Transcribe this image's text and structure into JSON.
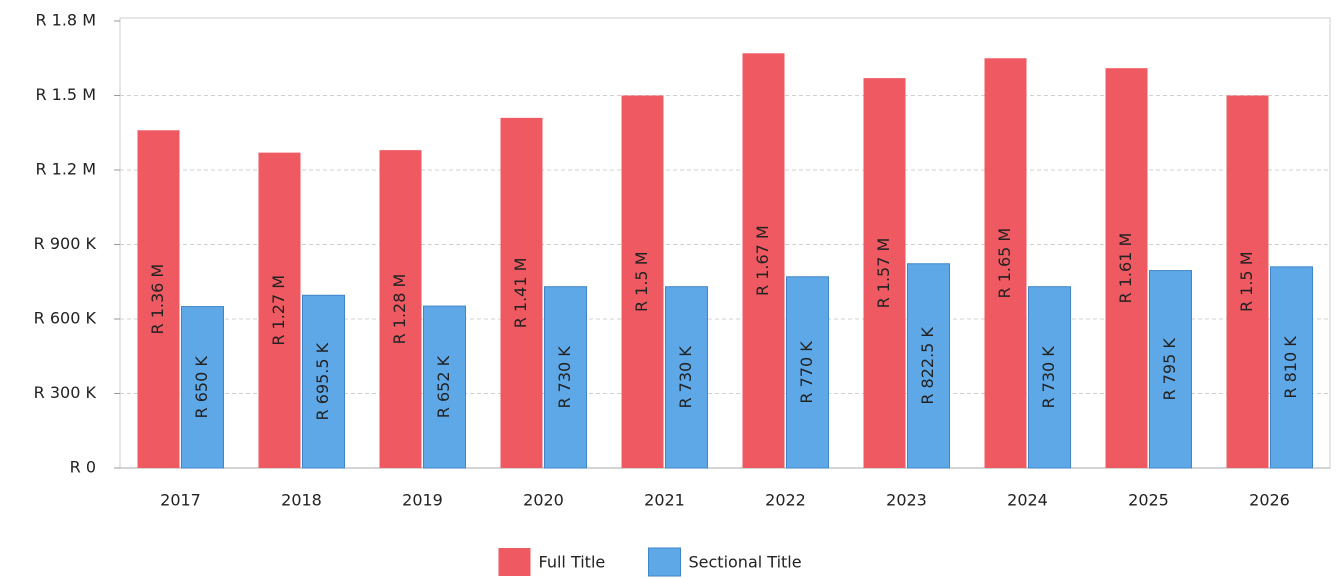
{
  "chart_data": {
    "type": "bar",
    "categories": [
      "2017",
      "2018",
      "2019",
      "2020",
      "2021",
      "2022",
      "2023",
      "2024",
      "2025",
      "2026"
    ],
    "series": [
      {
        "name": "Full Title",
        "color": "#ef5a62",
        "values": [
          1360000,
          1270000,
          1280000,
          1410000,
          1500000,
          1670000,
          1570000,
          1650000,
          1610000,
          1500000
        ],
        "value_labels": [
          "R 1.36 M",
          "R 1.27 M",
          "R 1.28 M",
          "R 1.41 M",
          "R 1.5 M",
          "R 1.67 M",
          "R 1.57 M",
          "R 1.65 M",
          "R 1.61 M",
          "R 1.5 M"
        ]
      },
      {
        "name": "Sectional Title",
        "color": "#5ea8e8",
        "values": [
          650000,
          695500,
          652000,
          730000,
          730000,
          770000,
          822500,
          730000,
          795000,
          810000
        ],
        "value_labels": [
          "R 650 K",
          "R 695.5 K",
          "R 652 K",
          "R 730 K",
          "R 730 K",
          "R 770 K",
          "R 822.5 K",
          "R 730 K",
          "R 795 K",
          "R 810 K"
        ]
      }
    ],
    "ylim": [
      0,
      1800000
    ],
    "yticks": [
      {
        "value": 0,
        "label": "R 0"
      },
      {
        "value": 300000,
        "label": "R 300 K"
      },
      {
        "value": 600000,
        "label": "R 600 K"
      },
      {
        "value": 900000,
        "label": "R 900 K"
      },
      {
        "value": 1200000,
        "label": "R 1.2 M"
      },
      {
        "value": 1500000,
        "label": "R 1.5 M"
      },
      {
        "value": 1800000,
        "label": "R 1.8 M"
      }
    ],
    "grid": true,
    "legend": "bottom"
  }
}
